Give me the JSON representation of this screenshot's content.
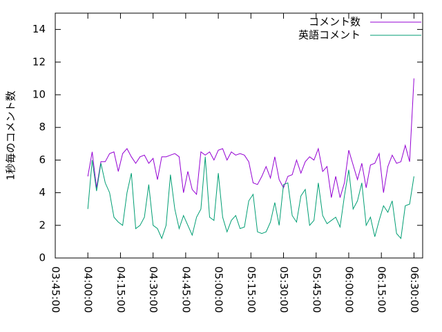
{
  "chart_data": {
    "type": "line",
    "ylabel": "1秒毎のコメント数",
    "legend": "top-right",
    "x": [
      "04:00:00",
      "04:02:00",
      "04:04:00",
      "04:06:00",
      "04:08:00",
      "04:10:00",
      "04:12:00",
      "04:14:00",
      "04:16:00",
      "04:18:00",
      "04:20:00",
      "04:22:00",
      "04:24:00",
      "04:26:00",
      "04:28:00",
      "04:30:00",
      "04:32:00",
      "04:34:00",
      "04:36:00",
      "04:38:00",
      "04:40:00",
      "04:42:00",
      "04:44:00",
      "04:46:00",
      "04:48:00",
      "04:50:00",
      "04:52:00",
      "04:54:00",
      "04:56:00",
      "04:58:00",
      "05:00:00",
      "05:02:00",
      "05:04:00",
      "05:06:00",
      "05:08:00",
      "05:10:00",
      "05:12:00",
      "05:14:00",
      "05:16:00",
      "05:18:00",
      "05:20:00",
      "05:22:00",
      "05:24:00",
      "05:26:00",
      "05:28:00",
      "05:30:00",
      "05:32:00",
      "05:34:00",
      "05:36:00",
      "05:38:00",
      "05:40:00",
      "05:42:00",
      "05:44:00",
      "05:46:00",
      "05:48:00",
      "05:50:00",
      "05:52:00",
      "05:54:00",
      "05:56:00",
      "05:58:00",
      "06:00:00",
      "06:02:00",
      "06:04:00",
      "06:06:00",
      "06:08:00",
      "06:10:00",
      "06:12:00",
      "06:14:00",
      "06:16:00",
      "06:18:00",
      "06:20:00",
      "06:22:00",
      "06:24:00",
      "06:26:00",
      "06:28:00",
      "06:30:00"
    ],
    "series": [
      {
        "name": "コメント数",
        "color": "#9400d3",
        "values": [
          5.0,
          6.5,
          4.3,
          5.9,
          5.9,
          6.4,
          6.5,
          5.3,
          6.4,
          6.7,
          6.2,
          5.8,
          6.2,
          6.3,
          5.8,
          6.1,
          4.8,
          6.2,
          6.2,
          6.3,
          6.4,
          6.2,
          4.0,
          5.3,
          4.2,
          3.9,
          6.5,
          6.3,
          6.5,
          6.0,
          6.6,
          6.7,
          6.0,
          6.5,
          6.3,
          6.4,
          6.3,
          5.9,
          4.6,
          4.5,
          5.0,
          5.6,
          4.9,
          6.2,
          4.8,
          4.3,
          5.0,
          5.1,
          6.0,
          5.2,
          5.9,
          6.2,
          6.0,
          6.7,
          5.3,
          5.6,
          3.7,
          5.0,
          3.7,
          4.6,
          6.6,
          5.7,
          4.8,
          5.8,
          4.3,
          5.7,
          5.8,
          6.4,
          4.0,
          5.6,
          6.3,
          5.8,
          5.9,
          6.9,
          5.9,
          11.0
        ]
      },
      {
        "name": "英語コメント",
        "color": "#009e73",
        "values": [
          3.0,
          6.0,
          4.1,
          5.8,
          4.6,
          4.0,
          2.5,
          2.2,
          2.0,
          4.0,
          5.2,
          1.8,
          2.0,
          2.5,
          4.5,
          2.0,
          1.8,
          1.2,
          2.0,
          5.1,
          3.0,
          1.8,
          2.6,
          2.0,
          1.4,
          2.5,
          3.0,
          6.2,
          2.5,
          2.3,
          5.2,
          2.5,
          1.6,
          2.3,
          2.6,
          1.8,
          1.9,
          3.5,
          3.9,
          1.6,
          1.5,
          1.6,
          2.2,
          3.4,
          2.0,
          4.5,
          4.6,
          2.6,
          2.2,
          3.8,
          4.2,
          2.0,
          2.3,
          4.6,
          2.6,
          2.1,
          2.3,
          2.5,
          1.9,
          3.8,
          5.4,
          3.0,
          3.5,
          4.6,
          2.0,
          2.5,
          1.3,
          2.3,
          3.2,
          2.8,
          3.5,
          1.5,
          1.2,
          3.2,
          3.3,
          5.0
        ]
      }
    ],
    "xlim": [
      "03:45:00",
      "06:34:00"
    ],
    "xticks": [
      "03:45:00",
      "04:00:00",
      "04:15:00",
      "04:30:00",
      "04:45:00",
      "05:00:00",
      "05:15:00",
      "05:30:00",
      "05:45:00",
      "06:00:00",
      "06:15:00",
      "06:30:00"
    ],
    "ylim": [
      0,
      15
    ],
    "yticks": [
      0,
      2,
      4,
      6,
      8,
      10,
      12,
      14
    ]
  }
}
